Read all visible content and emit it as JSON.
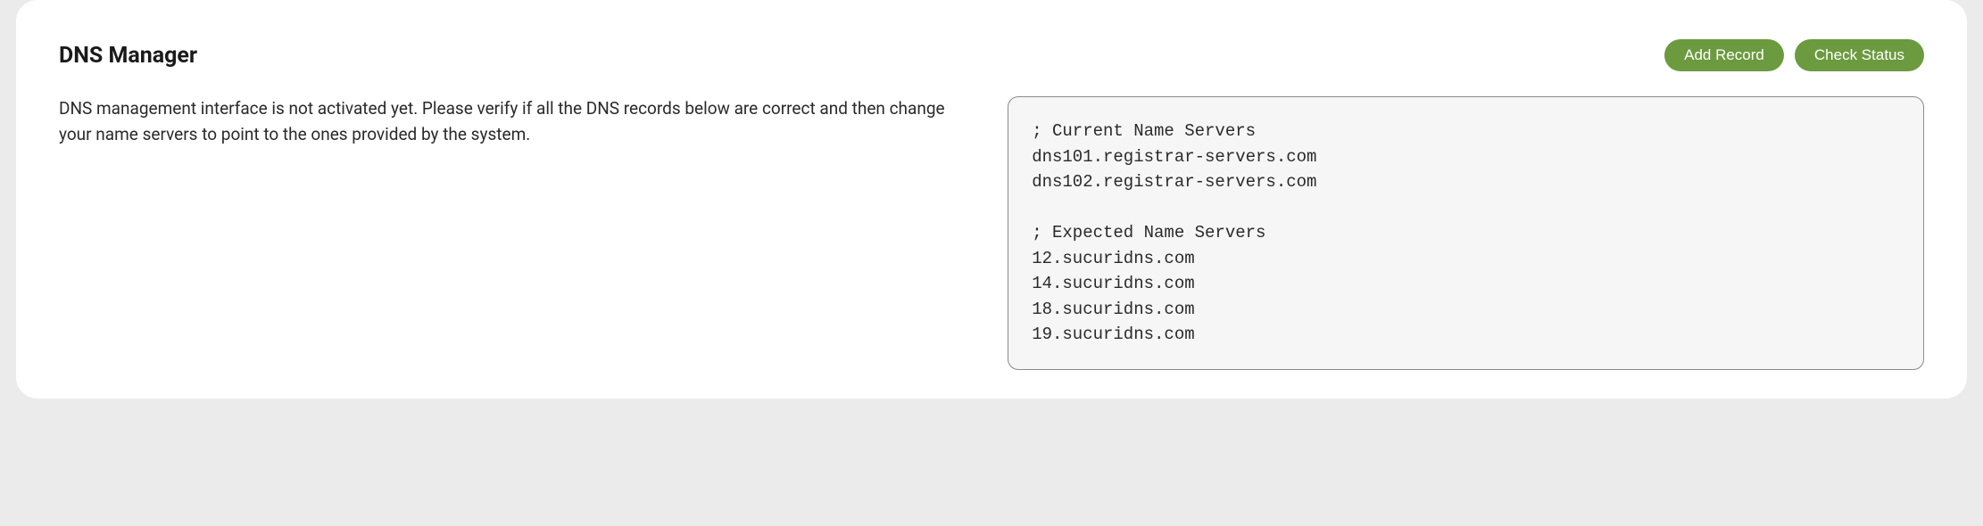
{
  "colors": {
    "page_bg": "#ebebeb",
    "card_bg": "#ffffff",
    "btn_bg": "#6b9a3f",
    "btn_text": "#ffffff",
    "code_bg": "#f6f6f6",
    "code_border": "#8a8a8a",
    "text": "#2a2a2a"
  },
  "header": {
    "title": "DNS Manager",
    "buttons": {
      "add_record": "Add Record",
      "check_status": "Check Status"
    }
  },
  "main": {
    "description": "DNS management interface is not activated yet. Please verify if all the DNS records below are correct and then change your name servers to point to the ones provided by the system.",
    "code_block": "; Current Name Servers\ndns101.registrar-servers.com\ndns102.registrar-servers.com\n\n; Expected Name Servers\n12.sucuridns.com\n14.sucuridns.com\n18.sucuridns.com\n19.sucuridns.com"
  }
}
